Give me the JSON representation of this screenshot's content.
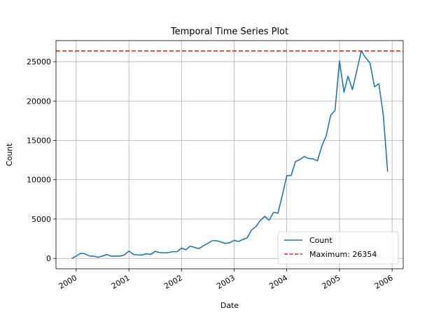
{
  "chart_data": {
    "type": "line",
    "title": "Temporal Time Series Plot",
    "xlabel": "Date",
    "ylabel": "Count",
    "xlim": [
      "1999-08-14",
      "2006-03-19"
    ],
    "ylim": [
      -1318,
      27672
    ],
    "x_ticks": [
      "2000",
      "2001",
      "2002",
      "2003",
      "2004",
      "2005",
      "2006"
    ],
    "y_ticks": [
      "0",
      "5000",
      "10000",
      "15000",
      "20000",
      "25000"
    ],
    "grid": true,
    "legend_position": "lower-right",
    "series": [
      {
        "name": "Count",
        "color": "#1f77b4",
        "x": [
          "1999-12-01",
          "2000-01-01",
          "2000-02-01",
          "2000-03-01",
          "2000-04-01",
          "2000-05-01",
          "2000-06-01",
          "2000-07-01",
          "2000-08-01",
          "2000-09-01",
          "2000-10-01",
          "2000-11-01",
          "2000-12-01",
          "2001-01-01",
          "2001-02-01",
          "2001-03-01",
          "2001-04-01",
          "2001-05-01",
          "2001-06-01",
          "2001-07-01",
          "2001-08-01",
          "2001-09-01",
          "2001-10-01",
          "2001-11-01",
          "2001-12-01",
          "2002-01-01",
          "2002-02-01",
          "2002-03-01",
          "2002-04-01",
          "2002-05-01",
          "2002-06-01",
          "2002-07-01",
          "2002-08-01",
          "2002-09-01",
          "2002-10-01",
          "2002-11-01",
          "2002-12-01",
          "2003-01-01",
          "2003-02-01",
          "2003-03-01",
          "2003-04-01",
          "2003-05-01",
          "2003-06-01",
          "2003-07-01",
          "2003-08-01",
          "2003-09-01",
          "2003-10-01",
          "2003-11-01",
          "2003-12-01",
          "2004-01-01",
          "2004-02-01",
          "2004-03-01",
          "2004-04-01",
          "2004-05-01",
          "2004-06-01",
          "2004-07-01",
          "2004-08-01",
          "2004-09-01",
          "2004-10-01",
          "2004-11-01",
          "2004-12-01",
          "2005-01-01",
          "2005-02-01",
          "2005-03-01",
          "2005-04-01",
          "2005-05-01",
          "2005-06-01",
          "2005-07-01",
          "2005-08-01",
          "2005-09-01",
          "2005-10-01",
          "2005-11-01",
          "2005-12-01"
        ],
        "values": [
          0,
          300,
          650,
          600,
          320,
          280,
          150,
          300,
          500,
          280,
          300,
          300,
          450,
          950,
          500,
          450,
          420,
          600,
          500,
          900,
          750,
          700,
          750,
          850,
          850,
          1300,
          1100,
          1550,
          1400,
          1250,
          1600,
          1900,
          2250,
          2250,
          2100,
          1900,
          2000,
          2300,
          2150,
          2400,
          2600,
          3600,
          4050,
          4800,
          5350,
          4850,
          5850,
          5750,
          8000,
          10500,
          10550,
          12300,
          12550,
          12950,
          12700,
          12650,
          12400,
          14300,
          15600,
          18200,
          18800,
          25100,
          21100,
          23150,
          21450,
          23850,
          26354,
          25500,
          24800,
          21800,
          22200,
          18200,
          11000
        ]
      },
      {
        "name": "Maximum: 26354",
        "color": "#d62728",
        "value": 26354,
        "style": "dashed"
      }
    ]
  }
}
